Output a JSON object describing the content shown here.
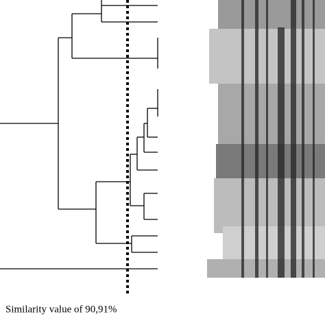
{
  "caption": "Similarity value of 90,91%"
}
